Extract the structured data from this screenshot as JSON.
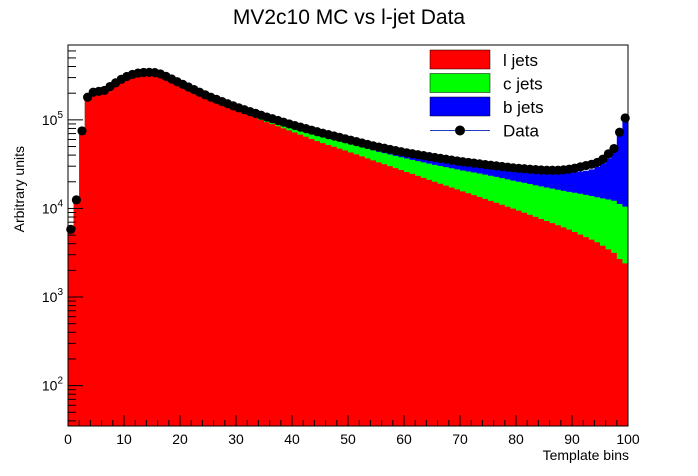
{
  "chart_data": {
    "type": "area",
    "title": "MV2c10 MC vs l-jet Data",
    "xlabel": "Template bins",
    "ylabel": "Arbitrary units",
    "xlim": [
      0,
      100
    ],
    "ylim": [
      35,
      700000
    ],
    "y_scale": "log",
    "x_ticks": [
      "0",
      "10",
      "20",
      "30",
      "40",
      "50",
      "60",
      "70",
      "80",
      "90",
      "100"
    ],
    "y_ticks": [
      {
        "value": 100,
        "base": "10",
        "exp": "2"
      },
      {
        "value": 1000,
        "base": "10",
        "exp": "3"
      },
      {
        "value": 10000,
        "base": "10",
        "exp": "4"
      },
      {
        "value": 100000,
        "base": "10",
        "exp": "5"
      }
    ],
    "legend": {
      "position": "top-right",
      "entries": [
        {
          "label": "l jets",
          "color": "#ff0000",
          "kind": "fill"
        },
        {
          "label": "c jets",
          "color": "#00ff00",
          "kind": "fill"
        },
        {
          "label": "b jets",
          "color": "#0000ff",
          "kind": "fill"
        },
        {
          "label": "Data",
          "color": "#000000",
          "kind": "marker"
        }
      ]
    },
    "stack_order": [
      "l jets",
      "c jets",
      "b jets"
    ],
    "colors": {
      "l jets": "#ff0000",
      "c jets": "#00ff00",
      "b jets": "#0000ff",
      "Data": "#000000"
    },
    "anchors": {
      "x": [
        0.5,
        1.5,
        2.5,
        3.5,
        4.5,
        5.5,
        6.5,
        8,
        10,
        12,
        14,
        16,
        18,
        20,
        25,
        30,
        35,
        40,
        45,
        50,
        55,
        60,
        65,
        70,
        75,
        80,
        85,
        88,
        90,
        92,
        93,
        94,
        95,
        96,
        97,
        98,
        99,
        99.5
      ],
      "data": [
        5800,
        12500,
        75000,
        180000,
        205000,
        210000,
        215000,
        250000,
        300000,
        335000,
        345000,
        340000,
        300000,
        260000,
        185000,
        140000,
        110000,
        88000,
        72000,
        60000,
        50000,
        43000,
        38000,
        34000,
        31000,
        28500,
        27000,
        27000,
        28000,
        30000,
        31000,
        32000,
        34000,
        38000,
        45000,
        50000,
        105000,
        105000
      ],
      "light": [
        5500,
        12000,
        73000,
        175000,
        200000,
        205000,
        210000,
        245000,
        295000,
        330000,
        338000,
        330000,
        290000,
        250000,
        175000,
        130000,
        97000,
        74000,
        56000,
        44000,
        34000,
        26500,
        20500,
        16000,
        12500,
        9700,
        7400,
        6300,
        5600,
        4900,
        4600,
        4300,
        4000,
        3600,
        3300,
        3000,
        2400,
        2400
      ],
      "charm": [
        5650,
        12300,
        74000,
        177000,
        202500,
        207500,
        212500,
        247500,
        298000,
        334000,
        343000,
        336000,
        296000,
        256000,
        181000,
        136000,
        104000,
        82000,
        65000,
        54000,
        44500,
        37200,
        31500,
        27200,
        23800,
        20300,
        17500,
        16000,
        15200,
        14500,
        14000,
        13600,
        13200,
        12800,
        12400,
        12000,
        10500,
        10500
      ],
      "total": [
        5750,
        12450,
        74800,
        179500,
        204500,
        209500,
        214500,
        249500,
        300500,
        336000,
        345500,
        339500,
        299000,
        259500,
        184000,
        139000,
        107500,
        86000,
        70000,
        59000,
        49500,
        42000,
        36500,
        32500,
        29500,
        26700,
        25200,
        25000,
        25500,
        26300,
        27000,
        28200,
        30500,
        34000,
        40000,
        47000,
        100000,
        100000
      ]
    }
  }
}
